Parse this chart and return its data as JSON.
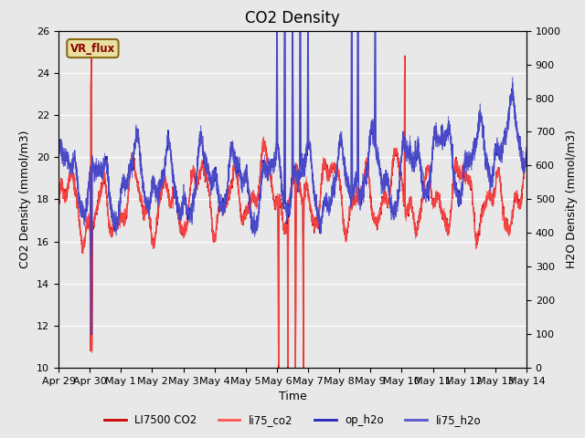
{
  "title": "CO2 Density",
  "xlabel": "Time",
  "ylabel_left": "CO2 Density (mmol/m3)",
  "ylabel_right": "H2O Density (mmol/m3)",
  "ylim_left": [
    10,
    26
  ],
  "ylim_right": [
    0,
    1000
  ],
  "yticks_left": [
    10,
    12,
    14,
    16,
    18,
    20,
    22,
    24,
    26
  ],
  "yticks_right": [
    0,
    100,
    200,
    300,
    400,
    500,
    600,
    700,
    800,
    900,
    1000
  ],
  "bg_color": "#e8e8e8",
  "vr_flux_label": "VR_flux",
  "vr_flux_bg": "#e8e0a0",
  "vr_flux_edge": "#8b6914",
  "legend_labels": [
    "LI7500 CO2",
    "li75_co2",
    "op_h2o",
    "li75_h2o"
  ],
  "series_colors": {
    "li7500_co2": "#cc0000",
    "li75_co2": "#ff5555",
    "op_h2o": "#2222bb",
    "li75_h2o": "#5555cc"
  },
  "xtick_labels": [
    "Apr 29",
    "Apr 30",
    "May 1",
    "May 2",
    "May 3",
    "May 4",
    "May 5",
    "May 6",
    "May 7",
    "May 8",
    "May 9",
    "May 10",
    "May 11",
    "May 12",
    "May 13",
    "May 14"
  ],
  "title_fontsize": 12,
  "axis_label_fontsize": 9,
  "tick_fontsize": 8
}
